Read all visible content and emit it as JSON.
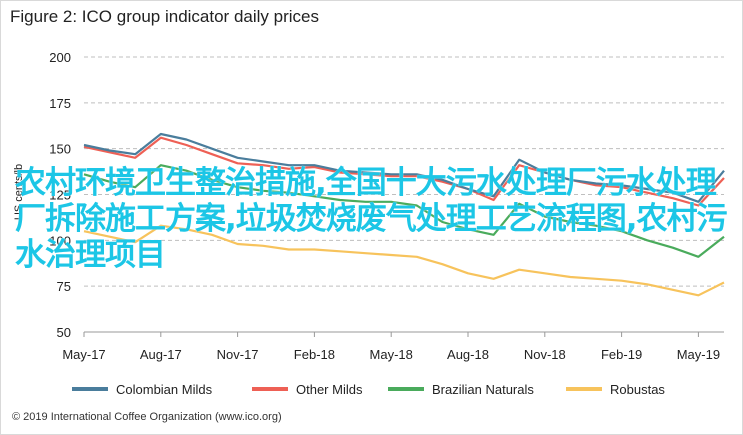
{
  "chart_data": {
    "type": "line",
    "title": "Figure 2: ICO group indicator daily prices",
    "ylabel": "US cents/lb",
    "xlabel": "",
    "ylim": [
      50,
      200
    ],
    "yticks": [
      50,
      75,
      100,
      125,
      150,
      175,
      200
    ],
    "xticks": [
      "May-17",
      "Aug-17",
      "Nov-17",
      "Feb-18",
      "May-18",
      "Aug-18",
      "Nov-18",
      "Feb-19",
      "May-19"
    ],
    "grid": "horizontal dashed",
    "legend_position": "bottom",
    "x": [
      "May-17",
      "Jun-17",
      "Jul-17",
      "Aug-17",
      "Sep-17",
      "Oct-17",
      "Nov-17",
      "Dec-17",
      "Jan-18",
      "Feb-18",
      "Mar-18",
      "Apr-18",
      "May-18",
      "Jun-18",
      "Jul-18",
      "Aug-18",
      "Sep-18",
      "Oct-18",
      "Nov-18",
      "Dec-18",
      "Jan-19",
      "Feb-19",
      "Mar-19",
      "Apr-19",
      "May-19",
      "Jun-19"
    ],
    "series": [
      {
        "name": "Colombian Milds",
        "color": "#4a7d9c",
        "values": [
          152,
          149,
          147,
          158,
          155,
          150,
          145,
          143,
          141,
          141,
          138,
          137,
          136,
          136,
          133,
          128,
          124,
          144,
          137,
          133,
          131,
          130,
          128,
          126,
          121,
          138
        ]
      },
      {
        "name": "Other Milds",
        "color": "#ee6055",
        "values": [
          151,
          148,
          145,
          156,
          152,
          147,
          142,
          141,
          139,
          140,
          137,
          136,
          135,
          135,
          132,
          128,
          122,
          141,
          137,
          133,
          130,
          129,
          126,
          123,
          119,
          134
        ]
      },
      {
        "name": "Brazilian Naturals",
        "color": "#4aab5c",
        "values": [
          136,
          132,
          129,
          141,
          138,
          133,
          129,
          127,
          126,
          124,
          122,
          121,
          121,
          119,
          110,
          106,
          103,
          120,
          113,
          110,
          108,
          105,
          100,
          96,
          91,
          102
        ]
      },
      {
        "name": "Robustas",
        "color": "#f7c35c",
        "values": [
          105,
          102,
          99,
          108,
          106,
          103,
          98,
          97,
          95,
          95,
          94,
          93,
          92,
          91,
          87,
          82,
          79,
          84,
          82,
          80,
          79,
          78,
          76,
          73,
          70,
          77
        ]
      }
    ]
  },
  "footer": {
    "text": "© 2019 International Coffee Organization (www.ico.org)"
  },
  "watermark": {
    "text": "农村环境卫生整治措施,全国十大污水处理厂污水处理厂拆除施工方案,垃圾焚烧废气处理工艺流程图,农村污水治理项目"
  }
}
